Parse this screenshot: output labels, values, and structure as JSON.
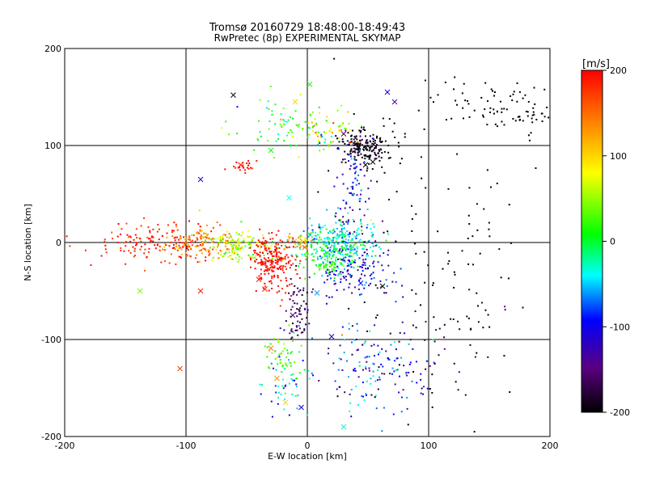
{
  "chart_data": {
    "type": "scatter",
    "title": "Tromsø 20160729 18:48:00-18:49:43",
    "subtitle": "RwPretec (8p) EXPERIMENTAL SKYMAP",
    "xlabel": "E-W location [km]",
    "ylabel": "N-S location [km]",
    "xlim": [
      -200,
      200
    ],
    "ylim": [
      -200,
      200
    ],
    "x_ticks": [
      -200,
      -100,
      0,
      100,
      200
    ],
    "y_ticks": [
      -200,
      -100,
      0,
      100,
      200
    ],
    "x_tick_labels": [
      "-200",
      "-100",
      "0",
      "100",
      "200"
    ],
    "y_tick_labels": [
      "-200",
      "-100",
      "0",
      "100",
      "200"
    ],
    "grid": true,
    "marker_styles": [
      "dot",
      "x"
    ],
    "colorbar": {
      "label": "[m/s]",
      "range": [
        -200,
        200
      ],
      "ticks": [
        200,
        100,
        0,
        -100,
        -200
      ],
      "tick_labels": [
        "200",
        "100",
        "0",
        "-100",
        "-200"
      ],
      "colormap": [
        "#000000",
        "#5a0080",
        "#0000ff",
        "#00ffff",
        "#00ff00",
        "#ffff00",
        "#ff8000",
        "#ff0000"
      ],
      "placement": "right"
    },
    "clusters": [
      {
        "name": "west-band-red",
        "center": [
          -120,
          0
        ],
        "spread": [
          28,
          10
        ],
        "count": 170,
        "velocity": 185,
        "vspread": 15
      },
      {
        "name": "west-band-orange",
        "center": [
          -85,
          0
        ],
        "spread": [
          15,
          9
        ],
        "count": 110,
        "velocity": 130,
        "vspread": 20
      },
      {
        "name": "west-band-yellowgreen",
        "center": [
          -55,
          -3
        ],
        "spread": [
          14,
          8
        ],
        "count": 140,
        "velocity": 55,
        "vspread": 25
      },
      {
        "name": "south-west-red-lobe",
        "center": [
          -28,
          -20
        ],
        "spread": [
          9,
          14
        ],
        "count": 230,
        "velocity": 195,
        "vspread": 10
      },
      {
        "name": "center-yellow",
        "center": [
          -5,
          0
        ],
        "spread": [
          6,
          5
        ],
        "count": 40,
        "velocity": 120,
        "vspread": 30
      },
      {
        "name": "center-cyan",
        "center": [
          25,
          0
        ],
        "spread": [
          16,
          12
        ],
        "count": 260,
        "velocity": -35,
        "vspread": 25
      },
      {
        "name": "center-green",
        "center": [
          20,
          -15
        ],
        "spread": [
          12,
          10
        ],
        "count": 110,
        "velocity": 10,
        "vspread": 20
      },
      {
        "name": "east-blue",
        "center": [
          40,
          -28
        ],
        "spread": [
          16,
          14
        ],
        "count": 140,
        "velocity": -100,
        "vspread": 30
      },
      {
        "name": "north-black",
        "center": [
          48,
          98
        ],
        "spread": [
          10,
          8
        ],
        "count": 180,
        "velocity": -195,
        "vspread": 10
      },
      {
        "name": "north-blue-column",
        "center": [
          38,
          55
        ],
        "spread": [
          7,
          25
        ],
        "count": 90,
        "velocity": -110,
        "vspread": 35
      },
      {
        "name": "northwest-green",
        "center": [
          -15,
          120
        ],
        "spread": [
          22,
          12
        ],
        "count": 70,
        "velocity": 10,
        "vspread": 30
      },
      {
        "name": "northwest-red-patch",
        "center": [
          -50,
          78
        ],
        "spread": [
          6,
          3
        ],
        "count": 22,
        "velocity": 190,
        "vspread": 8
      },
      {
        "name": "north-mixed",
        "center": [
          15,
          115
        ],
        "spread": [
          14,
          10
        ],
        "count": 60,
        "velocity": 70,
        "vspread": 60
      },
      {
        "name": "south-purple-column",
        "center": [
          -8,
          -70
        ],
        "spread": [
          5,
          20
        ],
        "count": 70,
        "velocity": -165,
        "vspread": 25
      },
      {
        "name": "south-green-patch",
        "center": [
          -22,
          -118
        ],
        "spread": [
          6,
          10
        ],
        "count": 45,
        "velocity": 20,
        "vspread": 30
      },
      {
        "name": "south-cyan-patch",
        "center": [
          -18,
          -150
        ],
        "spread": [
          10,
          15
        ],
        "count": 45,
        "velocity": -50,
        "vspread": 40
      },
      {
        "name": "southeast-scatter",
        "center": [
          55,
          -130
        ],
        "spread": [
          25,
          22
        ],
        "count": 150,
        "velocity": -90,
        "vspread": 50
      },
      {
        "name": "far-northeast-black",
        "center": [
          165,
          140
        ],
        "spread": [
          25,
          15
        ],
        "count": 90,
        "velocity": -200,
        "vspread": 5
      },
      {
        "name": "east-sparse-black",
        "center": [
          110,
          20
        ],
        "spread": [
          50,
          90
        ],
        "count": 110,
        "velocity": -198,
        "vspread": 6
      },
      {
        "name": "south-sparse-black",
        "center": [
          95,
          -100
        ],
        "spread": [
          35,
          40
        ],
        "count": 55,
        "velocity": -185,
        "vspread": 20
      }
    ],
    "marked_points": [
      {
        "x": -61,
        "y": 152,
        "v": -190
      },
      {
        "x": -55,
        "y": 80,
        "v": 190
      },
      {
        "x": -30,
        "y": 95,
        "v": 10
      },
      {
        "x": -88,
        "y": -50,
        "v": 190
      },
      {
        "x": -138,
        "y": -50,
        "v": 40
      },
      {
        "x": -105,
        "y": -130,
        "v": 170
      },
      {
        "x": -88,
        "y": 65,
        "v": -120
      },
      {
        "x": -15,
        "y": 46,
        "v": -40
      },
      {
        "x": -10,
        "y": 145,
        "v": 100
      },
      {
        "x": 2,
        "y": 163,
        "v": 15
      },
      {
        "x": 30,
        "y": 112,
        "v": -150
      },
      {
        "x": 48,
        "y": 80,
        "v": -200
      },
      {
        "x": 54,
        "y": 83,
        "v": -190
      },
      {
        "x": 72,
        "y": 145,
        "v": -140
      },
      {
        "x": 66,
        "y": 155,
        "v": -100
      },
      {
        "x": 44,
        "y": -42,
        "v": -90
      },
      {
        "x": 62,
        "y": -45,
        "v": -200
      },
      {
        "x": 20,
        "y": -97,
        "v": -110
      },
      {
        "x": -18,
        "y": -165,
        "v": 100
      },
      {
        "x": -5,
        "y": -170,
        "v": -110
      },
      {
        "x": 30,
        "y": -190,
        "v": -30
      },
      {
        "x": -30,
        "y": -109,
        "v": 150
      },
      {
        "x": -25,
        "y": -140,
        "v": 130
      },
      {
        "x": 8,
        "y": -52,
        "v": -60
      },
      {
        "x": -12,
        "y": -75,
        "v": -150
      },
      {
        "x": 30,
        "y": 8,
        "v": -20
      },
      {
        "x": -2,
        "y": -5,
        "v": 150
      },
      {
        "x": -35,
        "y": -48,
        "v": 190
      },
      {
        "x": -40,
        "y": -38,
        "v": 185
      },
      {
        "x": 15,
        "y": -25,
        "v": 20
      }
    ]
  }
}
